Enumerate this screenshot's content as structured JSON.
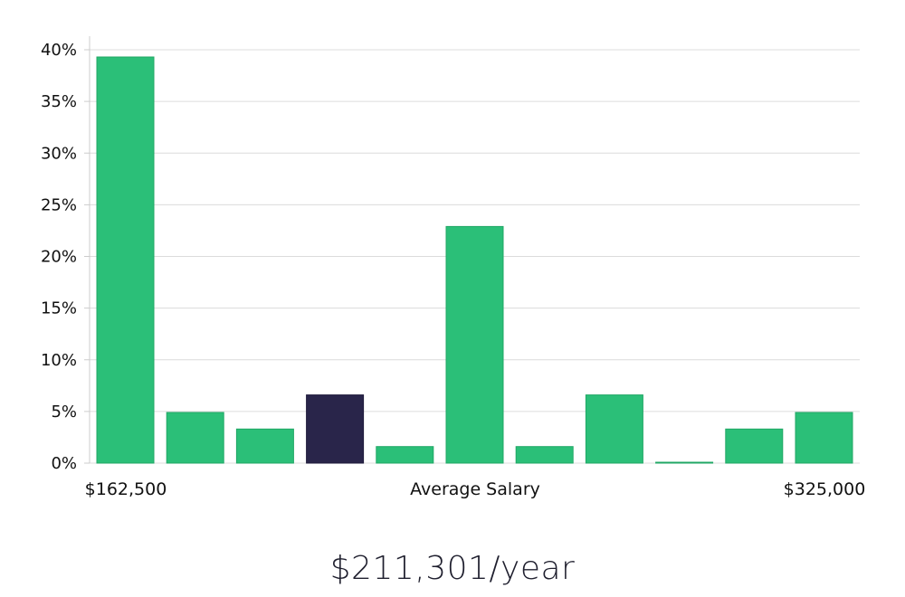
{
  "chart_data": {
    "type": "bar",
    "ylim": [
      0,
      40
    ],
    "yticks": [
      0,
      5,
      10,
      15,
      20,
      25,
      30,
      35,
      40
    ],
    "ytick_labels": [
      "0%",
      "5%",
      "10%",
      "15%",
      "20%",
      "25%",
      "30%",
      "35%",
      "40%"
    ],
    "values": [
      39.3,
      4.9,
      3.3,
      6.6,
      1.6,
      22.9,
      1.6,
      6.6,
      0.0,
      3.3,
      4.9
    ],
    "highlight_index": 3,
    "x_min_label": "$162,500",
    "x_mid_label": "Average Salary",
    "x_max_label": "$325,000",
    "grid": true,
    "colors": {
      "bar": "#2bbf78",
      "bar_edge": "#20a765",
      "highlight": "#29254a",
      "grid": "#dcdcdc",
      "axis": "#cccccc"
    }
  },
  "summary": {
    "salary_text": "$211,301/year"
  }
}
